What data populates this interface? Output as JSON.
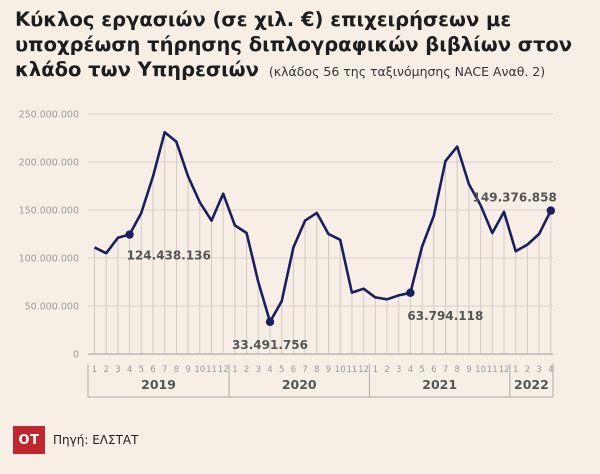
{
  "header": {
    "title": "Κύκλος εργασιών (σε χιλ. €) επιχειρήσεων με υποχρέωση τήρησης διπλογραφικών βιβλίων στον κλάδο των Υπηρεσιών",
    "subtitle": "(κλάδος 56 της ταξινόμησης NACE Αναθ. 2)"
  },
  "footer": {
    "logo": "OT",
    "source": "Πηγή: ΕΛΣΤΑΤ"
  },
  "colors": {
    "line": "#1b1e5e",
    "background": "#f7efe6",
    "grid": "#d9d2cb",
    "logo": "#c0262d"
  },
  "chart_data": {
    "type": "line",
    "x_months": [
      "1",
      "2",
      "3",
      "4",
      "5",
      "6",
      "7",
      "8",
      "9",
      "10",
      "11",
      "12",
      "1",
      "2",
      "3",
      "4",
      "5",
      "6",
      "7",
      "8",
      "9",
      "10",
      "11",
      "12",
      "1",
      "2",
      "3",
      "4",
      "5",
      "6",
      "7",
      "8",
      "9",
      "10",
      "11",
      "12",
      "1",
      "2",
      "3",
      "4"
    ],
    "years": [
      {
        "label": "2019",
        "months": 12
      },
      {
        "label": "2020",
        "months": 12
      },
      {
        "label": "2021",
        "months": 12
      },
      {
        "label": "2022",
        "months": 4
      }
    ],
    "series": [
      {
        "values": [
          111000000,
          105000000,
          121000000,
          124438136,
          147000000,
          185000000,
          231000000,
          221000000,
          185000000,
          158000000,
          139000000,
          167000000,
          134000000,
          126000000,
          75000000,
          33491756,
          55000000,
          111000000,
          139000000,
          147000000,
          125000000,
          119000000,
          64000000,
          68000000,
          59000000,
          57000000,
          61000000,
          63794118,
          112000000,
          144000000,
          201000000,
          216000000,
          177000000,
          155000000,
          126000000,
          148000000,
          107000000,
          114000000,
          125000000,
          149376858
        ]
      }
    ],
    "y_ticks": [
      "0",
      "50.000.000",
      "100.000.000",
      "150.000.000",
      "200.000.000",
      "250.000.000"
    ],
    "ylim": [
      0,
      250000000
    ],
    "annotations": [
      {
        "index": 3,
        "label": "124.438.136"
      },
      {
        "index": 15,
        "label": "33.491.756"
      },
      {
        "index": 27,
        "label": "63.794.118"
      },
      {
        "index": 39,
        "label": "149.376.858"
      }
    ],
    "grid": true
  }
}
